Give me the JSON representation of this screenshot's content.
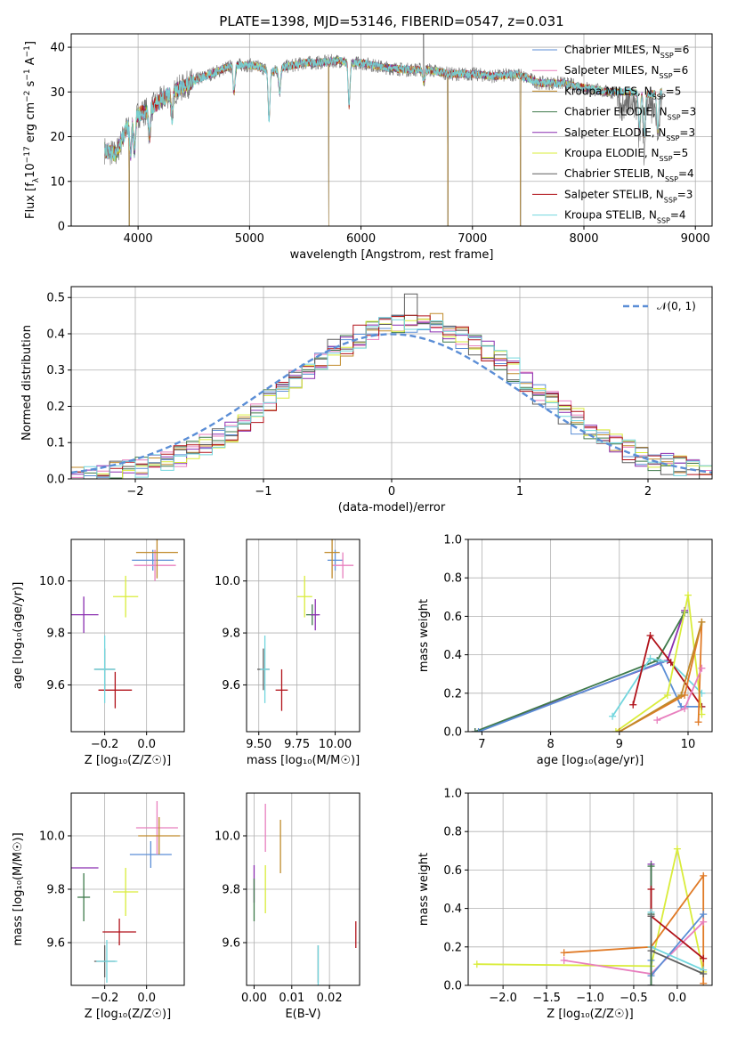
{
  "title": "PLATE=1398, MJD=53146, FIBERID=0547, z=0.031",
  "colors": {
    "chab_miles": "#5b8ed6",
    "salp_miles": "#e87fbe",
    "krou_miles": "#c08a2a",
    "chab_elodie": "#3f7a4b",
    "salp_elodie": "#8a2fb0",
    "krou_elodie": "#d9ec3a",
    "chab_stelib": "#5f5f5f",
    "salp_stelib": "#b1121a",
    "krou_stelib": "#72d6de",
    "orange": "#e07a26"
  },
  "legend": [
    {
      "name": "Chabrier MILES",
      "n": "6",
      "color": "#5b8ed6"
    },
    {
      "name": "Salpeter MILES",
      "n": "6",
      "color": "#e87fbe"
    },
    {
      "name": "Kroupa MILES",
      "n": "5",
      "color": "#c08a2a"
    },
    {
      "name": "Chabrier ELODIE",
      "n": "3",
      "color": "#3f7a4b"
    },
    {
      "name": "Salpeter ELODIE",
      "n": "3",
      "color": "#8a2fb0"
    },
    {
      "name": "Kroupa ELODIE",
      "n": "5",
      "color": "#d9ec3a"
    },
    {
      "name": "Chabrier STELIB",
      "n": "4",
      "color": "#5f5f5f"
    },
    {
      "name": "Salpeter STELIB",
      "n": "3",
      "color": "#b1121a"
    },
    {
      "name": "Kroupa STELIB",
      "n": "4",
      "color": "#72d6de"
    }
  ],
  "chart_data": [
    {
      "id": "spectrum",
      "type": "line",
      "title": "PLATE=1398, MJD=53146, FIBERID=0547, z=0.031",
      "xlabel": "wavelength [Angstrom, rest frame]",
      "ylabel_parts": [
        "Flux [f",
        "λ",
        "10",
        "−17",
        " erg cm",
        "−2",
        " s",
        "−1",
        " A",
        "−1",
        "]"
      ],
      "xlim": [
        3400,
        9150
      ],
      "ylim": [
        0,
        43
      ],
      "xticks": [
        4000,
        5000,
        6000,
        7000,
        8000,
        9000
      ],
      "yticks": [
        0,
        10,
        20,
        30,
        40
      ],
      "continuum": [
        [
          3700,
          17
        ],
        [
          3800,
          16
        ],
        [
          3900,
          22
        ],
        [
          4000,
          25
        ],
        [
          4100,
          26
        ],
        [
          4200,
          28
        ],
        [
          4300,
          30
        ],
        [
          4400,
          31
        ],
        [
          4500,
          32.5
        ],
        [
          4600,
          33.5
        ],
        [
          4700,
          34.5
        ],
        [
          4800,
          35.5
        ],
        [
          4900,
          36
        ],
        [
          5000,
          36
        ],
        [
          5100,
          35.5
        ],
        [
          5200,
          34.5
        ],
        [
          5300,
          35.5
        ],
        [
          5400,
          36
        ],
        [
          5500,
          36.5
        ],
        [
          5600,
          36.5
        ],
        [
          5700,
          36.8
        ],
        [
          5800,
          37
        ],
        [
          5900,
          36.5
        ],
        [
          6000,
          36.5
        ],
        [
          6200,
          35.5
        ],
        [
          6400,
          35
        ],
        [
          6600,
          35
        ],
        [
          6800,
          34
        ],
        [
          7000,
          34
        ],
        [
          7200,
          33.5
        ],
        [
          7400,
          34
        ],
        [
          7600,
          32
        ],
        [
          7800,
          32
        ],
        [
          8000,
          31
        ],
        [
          8200,
          30
        ],
        [
          8400,
          30
        ],
        [
          8600,
          29.5
        ],
        [
          8700,
          30
        ]
      ],
      "absorption_lines": [
        [
          3933,
          16
        ],
        [
          3968,
          17
        ],
        [
          4102,
          20
        ],
        [
          4305,
          24
        ],
        [
          4861,
          30
        ],
        [
          5175,
          24
        ],
        [
          5270,
          30
        ],
        [
          5893,
          27
        ],
        [
          6563,
          32
        ],
        [
          8498,
          22
        ],
        [
          8542,
          20
        ],
        [
          8662,
          21
        ]
      ],
      "dropouts": [
        [
          3920,
          0
        ],
        [
          5710,
          0
        ],
        [
          6780,
          0
        ],
        [
          7430,
          0
        ]
      ],
      "sky_spike": [
        6560,
        43
      ]
    },
    {
      "id": "residuals",
      "type": "histogram",
      "xlabel": "(data-model)/error",
      "ylabel": "Normed distribution",
      "xlim": [
        -2.5,
        2.5
      ],
      "ylim": [
        0,
        0.53
      ],
      "xticks": [
        -2,
        -1,
        0,
        1,
        2
      ],
      "yticks": [
        0.0,
        0.1,
        0.2,
        0.3,
        0.4,
        0.5
      ],
      "bin_width": 0.1,
      "legend_label": "𝒩(0, 1)"
    },
    {
      "id": "age_vs_Z",
      "type": "scatter",
      "xlabel": "Z [log₁₀(Z/Z☉)]",
      "ylabel": "age  [log₁₀(age/yr)]",
      "xlim": [
        -0.36,
        0.18
      ],
      "ylim": [
        9.42,
        10.16
      ],
      "xticks": [
        -0.2,
        0.0
      ],
      "yticks": [
        9.6,
        9.8,
        10.0
      ],
      "points": [
        {
          "series": "chab_miles",
          "x": 0.03,
          "y": 10.08,
          "xe": 0.1,
          "ye": 0.04
        },
        {
          "series": "salp_miles",
          "x": 0.04,
          "y": 10.06,
          "xe": 0.1,
          "ye": 0.06
        },
        {
          "series": "krou_miles",
          "x": 0.05,
          "y": 10.11,
          "xe": 0.1,
          "ye": 0.1
        },
        {
          "series": "chab_elodie",
          "x": -0.3,
          "y": 9.87,
          "xe": 0.0,
          "ye": 0.0
        },
        {
          "series": "salp_elodie",
          "x": -0.3,
          "y": 9.87,
          "xe": 0.07,
          "ye": 0.07
        },
        {
          "series": "krou_elodie",
          "x": -0.1,
          "y": 9.94,
          "xe": 0.06,
          "ye": 0.08
        },
        {
          "series": "chab_stelib",
          "x": -0.2,
          "y": 9.66,
          "xe": 0.05,
          "ye": 0.08
        },
        {
          "series": "salp_stelib",
          "x": -0.15,
          "y": 9.58,
          "xe": 0.08,
          "ye": 0.07
        },
        {
          "series": "krou_stelib",
          "x": -0.2,
          "y": 9.66,
          "xe": 0.05,
          "ye": 0.13
        }
      ]
    },
    {
      "id": "age_vs_mass",
      "type": "scatter",
      "xlabel": "mass [log₁₀(M/M☉)]",
      "ylabel": "",
      "xlim": [
        9.42,
        10.16
      ],
      "ylim": [
        9.42,
        10.16
      ],
      "xticks": [
        9.5,
        9.75,
        10.0
      ],
      "yticks": [
        9.6,
        9.8,
        10.0
      ],
      "points": [
        {
          "series": "chab_miles",
          "x": 10.0,
          "y": 10.08,
          "xe": 0.05,
          "ye": 0.04
        },
        {
          "series": "salp_miles",
          "x": 10.05,
          "y": 10.06,
          "xe": 0.07,
          "ye": 0.05
        },
        {
          "series": "krou_miles",
          "x": 9.98,
          "y": 10.11,
          "xe": 0.05,
          "ye": 0.1
        },
        {
          "series": "chab_elodie",
          "x": 9.85,
          "y": 9.87,
          "xe": 0.04,
          "ye": 0.04
        },
        {
          "series": "salp_elodie",
          "x": 9.87,
          "y": 9.87,
          "xe": 0.03,
          "ye": 0.06
        },
        {
          "series": "krou_elodie",
          "x": 9.8,
          "y": 9.94,
          "xe": 0.05,
          "ye": 0.08
        },
        {
          "series": "chab_stelib",
          "x": 9.53,
          "y": 9.66,
          "xe": 0.04,
          "ye": 0.08
        },
        {
          "series": "salp_stelib",
          "x": 9.65,
          "y": 9.58,
          "xe": 0.04,
          "ye": 0.08
        },
        {
          "series": "krou_stelib",
          "x": 9.54,
          "y": 9.66,
          "xe": 0.03,
          "ye": 0.13
        }
      ]
    },
    {
      "id": "weight_vs_age",
      "type": "line",
      "xlabel": "age  [log₁₀(age/yr)]",
      "ylabel": "mass weight",
      "xlim": [
        6.8,
        10.35
      ],
      "ylim": [
        0,
        1
      ],
      "xticks": [
        7,
        8,
        9,
        10
      ],
      "yticks": [
        0.0,
        0.2,
        0.4,
        0.6,
        0.8,
        1.0
      ],
      "series": [
        {
          "color": "salp_elodie",
          "x": [
            6.9,
            9.7,
            9.95
          ],
          "y": [
            0.0,
            0.37,
            0.63
          ]
        },
        {
          "color": "chab_elodie",
          "x": [
            6.9,
            9.55,
            9.95
          ],
          "y": [
            0.0,
            0.37,
            0.62
          ]
        },
        {
          "color": "chab_miles",
          "x": [
            6.95,
            9.6,
            9.9,
            10.2
          ],
          "y": [
            0.0,
            0.36,
            0.13,
            0.13
          ]
        },
        {
          "color": "krou_stelib",
          "x": [
            8.9,
            9.45,
            9.75,
            10.2
          ],
          "y": [
            0.08,
            0.38,
            0.36,
            0.2
          ]
        },
        {
          "color": "salp_stelib",
          "x": [
            9.2,
            9.45,
            9.75,
            10.2
          ],
          "y": [
            0.14,
            0.5,
            0.36,
            0.13
          ]
        },
        {
          "color": "krou_elodie",
          "x": [
            8.95,
            9.7,
            10.0,
            10.2
          ],
          "y": [
            0.0,
            0.19,
            0.71,
            0.09
          ]
        },
        {
          "color": "orange",
          "x": [
            9.0,
            9.95,
            10.2,
            10.15
          ],
          "y": [
            0.0,
            0.19,
            0.57,
            0.05
          ]
        },
        {
          "color": "krou_miles",
          "x": [
            9.0,
            9.9,
            10.2
          ],
          "y": [
            0.0,
            0.19,
            0.57
          ]
        },
        {
          "color": "salp_miles",
          "x": [
            9.55,
            9.95,
            10.2
          ],
          "y": [
            0.06,
            0.12,
            0.33
          ]
        }
      ]
    },
    {
      "id": "mass_vs_Z",
      "type": "scatter",
      "xlabel": "Z [log₁₀(Z/Z☉)]",
      "ylabel": "mass [log₁₀(M/M☉)]",
      "xlim": [
        -0.36,
        0.18
      ],
      "ylim": [
        9.44,
        10.16
      ],
      "xticks": [
        -0.2,
        0.0
      ],
      "yticks": [
        9.6,
        9.8,
        10.0
      ],
      "points": [
        {
          "series": "chab_miles",
          "x": 0.02,
          "y": 9.93,
          "xe": 0.1,
          "ye": 0.05
        },
        {
          "series": "salp_miles",
          "x": 0.05,
          "y": 10.03,
          "xe": 0.1,
          "ye": 0.1
        },
        {
          "series": "krou_miles",
          "x": 0.06,
          "y": 10.0,
          "xe": 0.1,
          "ye": 0.07
        },
        {
          "series": "chab_elodie",
          "x": -0.3,
          "y": 9.77,
          "xe": 0.03,
          "ye": 0.09
        },
        {
          "series": "salp_elodie",
          "x": -0.3,
          "y": 9.88,
          "xe": 0.07,
          "ye": 0.0
        },
        {
          "series": "krou_elodie",
          "x": -0.1,
          "y": 9.79,
          "xe": 0.06,
          "ye": 0.09
        },
        {
          "series": "chab_stelib",
          "x": -0.2,
          "y": 9.53,
          "xe": 0.05,
          "ye": 0.06
        },
        {
          "series": "salp_stelib",
          "x": -0.13,
          "y": 9.64,
          "xe": 0.08,
          "ye": 0.05
        },
        {
          "series": "krou_stelib",
          "x": -0.19,
          "y": 9.53,
          "xe": 0.05,
          "ye": 0.08
        }
      ]
    },
    {
      "id": "mass_vs_ebv",
      "type": "scatter",
      "xlabel": "E(B-V)",
      "ylabel": "",
      "xlim": [
        -0.002,
        0.028
      ],
      "ylim": [
        9.44,
        10.16
      ],
      "xticks": [
        0.0,
        0.01,
        0.02
      ],
      "xtick_labels": [
        "0.00",
        "0.01",
        "0.02"
      ],
      "yticks": [
        9.6,
        9.8,
        10.0
      ],
      "points": [
        {
          "series": "salp_elodie",
          "x": 0.0,
          "y": 9.82,
          "xe": 0.0,
          "ye": 0.07
        },
        {
          "series": "chab_elodie",
          "x": 0.0,
          "y": 9.76,
          "xe": 0.0,
          "ye": 0.08
        },
        {
          "series": "salp_miles",
          "x": 0.003,
          "y": 10.03,
          "xe": 0.0,
          "ye": 0.09
        },
        {
          "series": "krou_elodie",
          "x": 0.003,
          "y": 9.8,
          "xe": 0.0,
          "ye": 0.09
        },
        {
          "series": "krou_miles",
          "x": 0.007,
          "y": 9.96,
          "xe": 0.0,
          "ye": 0.1
        },
        {
          "series": "chab_stelib",
          "x": 0.017,
          "y": 9.52,
          "xe": 0.0,
          "ye": 0.07
        },
        {
          "series": "krou_stelib",
          "x": 0.017,
          "y": 9.51,
          "xe": 0.0,
          "ye": 0.08
        },
        {
          "series": "salp_stelib",
          "x": 0.027,
          "y": 9.63,
          "xe": 0.0,
          "ye": 0.05
        }
      ]
    },
    {
      "id": "weight_vs_Z",
      "type": "line",
      "xlabel": "Z [log₁₀(Z/Z☉)]",
      "ylabel": "mass weight",
      "xlim": [
        -2.4,
        0.4
      ],
      "ylim": [
        0,
        1
      ],
      "xticks": [
        -2.0,
        -1.5,
        -1.0,
        -0.5,
        0.0
      ],
      "yticks": [
        0.0,
        0.2,
        0.4,
        0.6,
        0.8,
        1.0
      ],
      "series": [
        {
          "color": "krou_elodie",
          "x": [
            -2.3,
            -0.3,
            0.0,
            0.3
          ],
          "y": [
            0.11,
            0.1,
            0.71,
            0.07
          ]
        },
        {
          "color": "orange",
          "x": [
            -1.3,
            -0.3,
            0.3,
            0.3
          ],
          "y": [
            0.17,
            0.2,
            0.57,
            0.01
          ]
        },
        {
          "color": "salp_miles",
          "x": [
            -1.3,
            -0.3,
            0.3
          ],
          "y": [
            0.13,
            0.06,
            0.33
          ]
        },
        {
          "color": "chab_miles",
          "x": [
            -0.3,
            -0.3,
            0.3
          ],
          "y": [
            0.13,
            0.05,
            0.37
          ]
        },
        {
          "color": "salp_elodie",
          "x": [
            -0.3,
            -0.3,
            -0.3
          ],
          "y": [
            0.63,
            0.37,
            0.0
          ]
        },
        {
          "color": "chab_elodie",
          "x": [
            -0.3,
            -0.3,
            -0.3
          ],
          "y": [
            0.62,
            0.37,
            0.0
          ]
        },
        {
          "color": "salp_stelib",
          "x": [
            -0.3,
            -0.3,
            0.3
          ],
          "y": [
            0.5,
            0.36,
            0.14
          ]
        },
        {
          "color": "krou_stelib",
          "x": [
            -0.3,
            -0.3,
            0.3
          ],
          "y": [
            0.38,
            0.2,
            0.08
          ]
        },
        {
          "color": "chab_stelib",
          "x": [
            -0.3,
            -0.3,
            0.3
          ],
          "y": [
            0.36,
            0.18,
            0.06
          ]
        }
      ]
    }
  ]
}
